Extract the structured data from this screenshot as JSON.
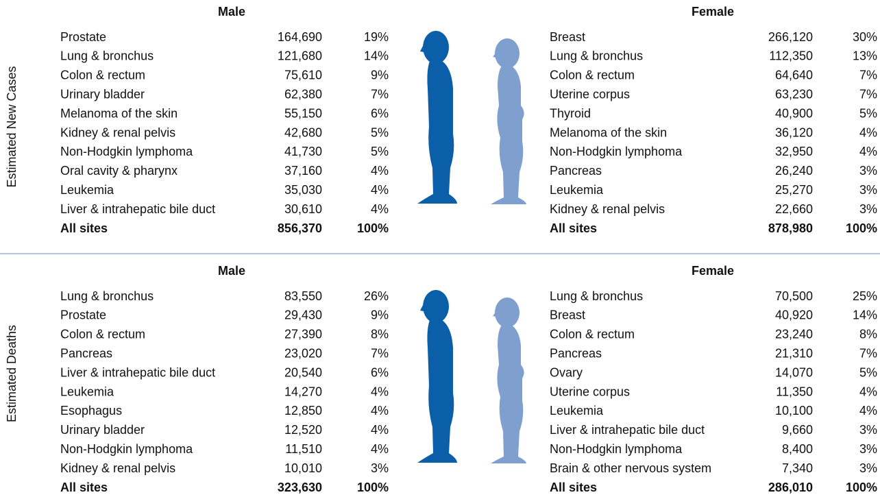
{
  "sections": [
    {
      "label": "Estimated New Cases",
      "male": {
        "title": "Male",
        "rows": [
          [
            "Prostate",
            "164,690",
            "19%"
          ],
          [
            "Lung & bronchus",
            "121,680",
            "14%"
          ],
          [
            "Colon & rectum",
            "75,610",
            "9%"
          ],
          [
            "Urinary bladder",
            "62,380",
            "7%"
          ],
          [
            "Melanoma of the skin",
            "55,150",
            "6%"
          ],
          [
            "Kidney & renal pelvis",
            "42,680",
            "5%"
          ],
          [
            "Non-Hodgkin lymphoma",
            "41,730",
            "5%"
          ],
          [
            "Oral cavity & pharynx",
            "37,160",
            "4%"
          ],
          [
            "Leukemia",
            "35,030",
            "4%"
          ],
          [
            "Liver & intrahepatic bile duct",
            "30,610",
            "4%"
          ]
        ],
        "total": [
          "All sites",
          "856,370",
          "100%"
        ]
      },
      "female": {
        "title": "Female",
        "rows": [
          [
            "Breast",
            "266,120",
            "30%"
          ],
          [
            "Lung & bronchus",
            "112,350",
            "13%"
          ],
          [
            "Colon & rectum",
            "64,640",
            "7%"
          ],
          [
            "Uterine corpus",
            "63,230",
            "7%"
          ],
          [
            "Thyroid",
            "40,900",
            "5%"
          ],
          [
            "Melanoma of the skin",
            "36,120",
            "4%"
          ],
          [
            "Non-Hodgkin lymphoma",
            "32,950",
            "4%"
          ],
          [
            "Pancreas",
            "26,240",
            "3%"
          ],
          [
            "Leukemia",
            "25,270",
            "3%"
          ],
          [
            "Kidney & renal pelvis",
            "22,660",
            "3%"
          ]
        ],
        "total": [
          "All sites",
          "878,980",
          "100%"
        ]
      }
    },
    {
      "label": "Estimated Deaths",
      "male": {
        "title": "Male",
        "rows": [
          [
            "Lung & bronchus",
            "83,550",
            "26%"
          ],
          [
            "Prostate",
            "29,430",
            "9%"
          ],
          [
            "Colon & rectum",
            "27,390",
            "8%"
          ],
          [
            "Pancreas",
            "23,020",
            "7%"
          ],
          [
            "Liver & intrahepatic bile duct",
            "20,540",
            "6%"
          ],
          [
            "Leukemia",
            "14,270",
            "4%"
          ],
          [
            "Esophagus",
            "12,850",
            "4%"
          ],
          [
            "Urinary bladder",
            "12,520",
            "4%"
          ],
          [
            "Non-Hodgkin lymphoma",
            "11,510",
            "4%"
          ],
          [
            "Kidney & renal pelvis",
            "10,010",
            "3%"
          ]
        ],
        "total": [
          "All sites",
          "323,630",
          "100%"
        ]
      },
      "female": {
        "title": "Female",
        "rows": [
          [
            "Lung & bronchus",
            "70,500",
            "25%"
          ],
          [
            "Breast",
            "40,920",
            "14%"
          ],
          [
            "Colon & rectum",
            "23,240",
            "8%"
          ],
          [
            "Pancreas",
            "21,310",
            "7%"
          ],
          [
            "Ovary",
            "14,070",
            "5%"
          ],
          [
            "Uterine corpus",
            "11,350",
            "4%"
          ],
          [
            "Leukemia",
            "10,100",
            "4%"
          ],
          [
            "Liver & intrahepatic bile duct",
            "9,660",
            "3%"
          ],
          [
            "Non-Hodgkin lymphoma",
            "8,400",
            "3%"
          ],
          [
            "Brain & other nervous system",
            "7,340",
            "3%"
          ]
        ],
        "total": [
          "All sites",
          "286,010",
          "100%"
        ]
      }
    }
  ]
}
